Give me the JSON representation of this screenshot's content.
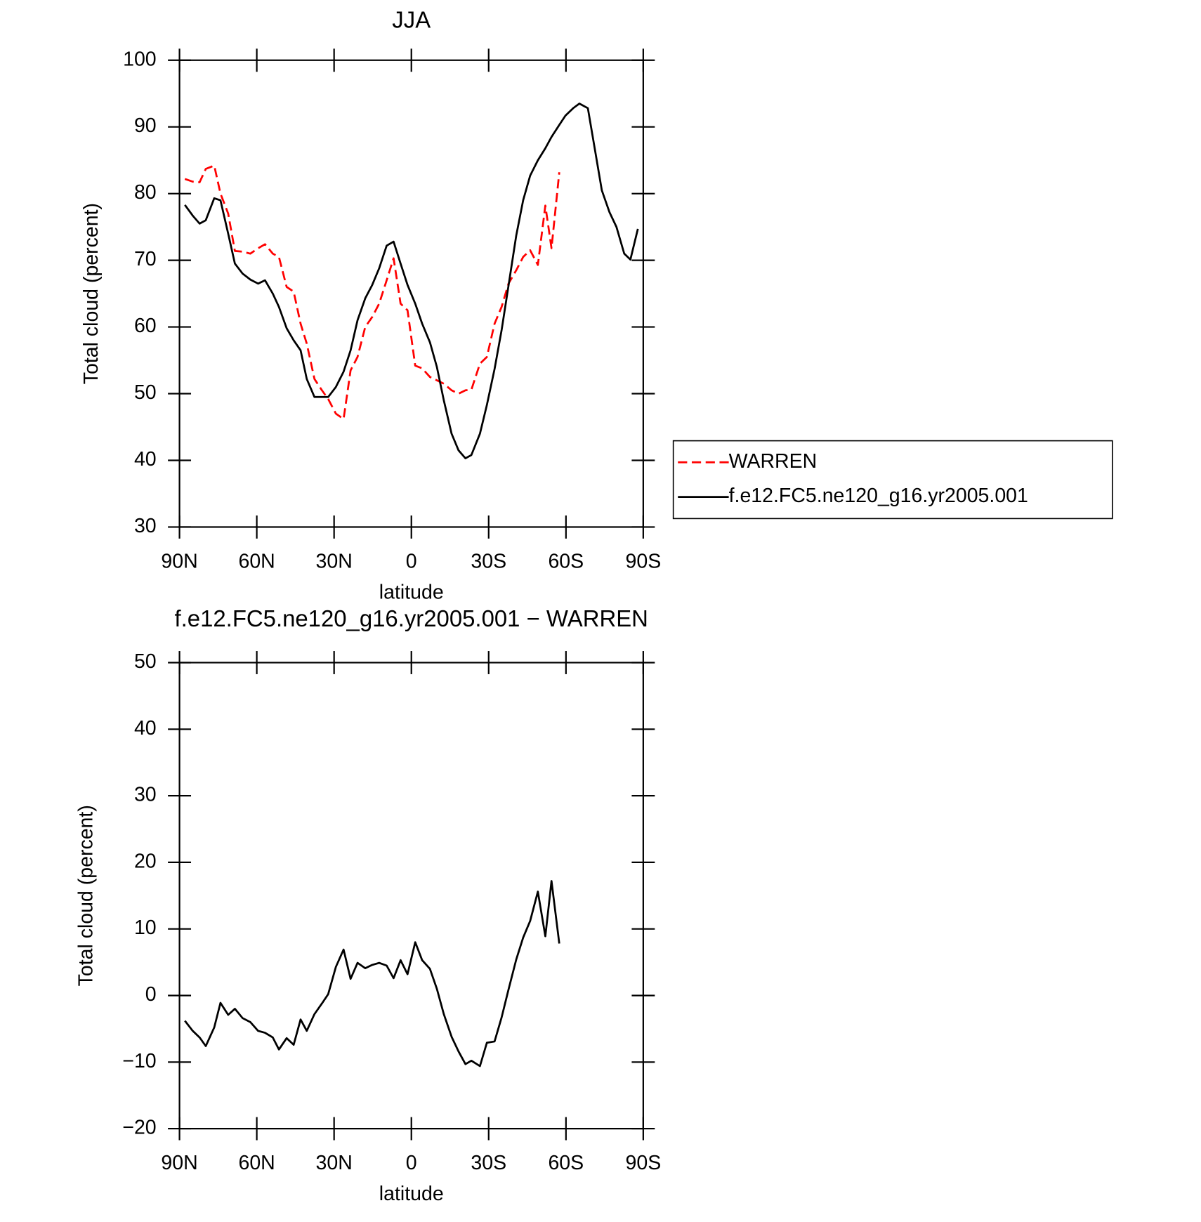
{
  "chart_data": [
    {
      "type": "line",
      "title": "JJA",
      "xlabel": "latitude",
      "ylabel": "Total cloud (percent)",
      "x": [
        87.9,
        84.9,
        82.2,
        79.8,
        76.5,
        74.1,
        71.1,
        68.5,
        65.5,
        62.5,
        59.5,
        56.8,
        53.8,
        51.4,
        48.4,
        45.7,
        43.0,
        40.6,
        37.6,
        34.7,
        32.3,
        29.3,
        26.3,
        23.6,
        20.9,
        17.9,
        15.2,
        12.5,
        9.6,
        6.9,
        4.2,
        1.5,
        -1.5,
        -4.2,
        -7.2,
        -9.9,
        -12.6,
        -15.6,
        -18.3,
        -21.0,
        -23.3,
        -26.6,
        -29.3,
        -32.3,
        -35.0,
        -37.7,
        -40.7,
        -43.4,
        -46.1,
        -49.1,
        -52.0,
        -54.4,
        -57.4,
        -59.8,
        -62.8,
        -65.2,
        -68.5,
        -71.2,
        -73.9,
        -76.9,
        -79.6,
        -82.6,
        -85.0,
        -87.9
      ],
      "xlim": [
        90,
        -90
      ],
      "xticks": [
        {
          "value": 90,
          "label": "90N"
        },
        {
          "value": 60,
          "label": "60N"
        },
        {
          "value": 30,
          "label": "30N"
        },
        0,
        {
          "value": -30,
          "label": "30S"
        },
        {
          "value": -60,
          "label": "60S"
        },
        {
          "value": -90,
          "label": "90S"
        }
      ],
      "ylim": [
        30,
        100
      ],
      "yticks": [
        30,
        40,
        50,
        60,
        70,
        80,
        90,
        100
      ],
      "legend": "outside-right",
      "series": [
        {
          "name": "WARREN",
          "color": "#ff0000",
          "dashed": true,
          "values": [
            82.2,
            81.8,
            81.7,
            83.7,
            84.2,
            80,
            77,
            71.4,
            71.3,
            71,
            71.8,
            72.4,
            71,
            70.5,
            66,
            65.3,
            60.5,
            57.5,
            52.2,
            50.5,
            49.2,
            47,
            46.2,
            53.5,
            55.5,
            60,
            61.5,
            63.5,
            67,
            70.3,
            63.5,
            62.5,
            54.2,
            53.8,
            52.5,
            52,
            51.5,
            50.5,
            50,
            50.5,
            50.6,
            54.5,
            55.5,
            60.5,
            63,
            66.5,
            68.5,
            70.5,
            71.5,
            69.3,
            78.2,
            71.8,
            83.2,
            null,
            null,
            null,
            null,
            null,
            null,
            null,
            null,
            null,
            null,
            null
          ]
        },
        {
          "name": "f.e12.FC5.ne120_g16.yr2005.001",
          "color": "#000000",
          "dashed": false,
          "values": [
            78.3,
            76.7,
            75.5,
            76,
            79.3,
            79,
            74,
            69.5,
            68,
            67.1,
            66.5,
            67,
            65,
            63,
            59.8,
            58,
            56.5,
            52.2,
            49.5,
            49.5,
            49.5,
            51,
            53.3,
            56.5,
            61,
            64.3,
            66.3,
            68.8,
            72.2,
            72.8,
            69.5,
            66.3,
            63.5,
            60.5,
            57.7,
            54,
            49,
            44,
            41.5,
            40.3,
            40.8,
            44,
            48.3,
            53.7,
            59.5,
            66.2,
            73.7,
            79,
            82.7,
            85,
            86.8,
            88.5,
            90.3,
            91.7,
            92.8,
            93.5,
            92.8,
            86.7,
            80.5,
            77.2,
            75,
            71,
            70.1,
            74.7
          ]
        }
      ]
    },
    {
      "type": "line",
      "title": "f.e12.FC5.ne120_g16.yr2005.001 − WARREN",
      "xlabel": "latitude",
      "ylabel": "Total cloud (percent)",
      "x": [
        87.9,
        84.9,
        82.2,
        79.8,
        76.5,
        74.1,
        71.1,
        68.5,
        65.5,
        62.5,
        59.5,
        56.8,
        53.8,
        51.4,
        48.4,
        45.7,
        43.0,
        40.6,
        37.6,
        34.7,
        32.3,
        29.3,
        26.3,
        23.6,
        20.9,
        17.9,
        15.2,
        12.5,
        9.6,
        6.9,
        4.2,
        1.5,
        -1.5,
        -4.2,
        -7.2,
        -9.9,
        -12.6,
        -15.6,
        -18.3,
        -21.0,
        -23.3,
        -26.6,
        -29.3,
        -32.3,
        -35.0,
        -37.7,
        -40.7,
        -43.4,
        -46.1,
        -49.1,
        -52.0,
        -54.4,
        -57.4,
        -59.8,
        -62.8,
        -65.2,
        -68.5,
        -71.2,
        -73.9,
        -76.9,
        -79.6,
        -82.6,
        -85.0,
        -87.9
      ],
      "xlim": [
        90,
        -90
      ],
      "xticks": [
        {
          "value": 90,
          "label": "90N"
        },
        {
          "value": 60,
          "label": "60N"
        },
        {
          "value": 30,
          "label": "30N"
        },
        0,
        {
          "value": -30,
          "label": "30S"
        },
        {
          "value": -60,
          "label": "60S"
        },
        {
          "value": -90,
          "label": "90S"
        }
      ],
      "ylim": [
        -20,
        50
      ],
      "yticks": [
        {
          "value": -20,
          "label": "−20"
        },
        {
          "value": -10,
          "label": "−10"
        },
        0,
        10,
        20,
        30,
        40,
        50
      ],
      "series": [
        {
          "color": "#000000",
          "dashed": false,
          "values": [
            -3.8,
            -5.3,
            -6.3,
            -7.6,
            -4.8,
            -1.1,
            -2.9,
            -2,
            -3.4,
            -4,
            -5.3,
            -5.6,
            -6.3,
            -8.1,
            -6.4,
            -7.4,
            -3.6,
            -5.3,
            -2.8,
            -1.2,
            0.2,
            4.3,
            6.9,
            2.5,
            4.9,
            4.1,
            4.6,
            4.9,
            4.5,
            2.6,
            5.3,
            3.2,
            8.0,
            5.3,
            4,
            1,
            -2.8,
            -6.2,
            -8.4,
            -10.3,
            -9.8,
            -10.6,
            -7.1,
            -6.9,
            -3.3,
            0.9,
            5.4,
            8.7,
            11.2,
            15.6,
            8.9,
            17.2,
            7.8,
            null,
            null,
            null,
            null,
            null,
            null,
            null,
            null,
            null,
            null,
            null
          ]
        }
      ]
    }
  ]
}
